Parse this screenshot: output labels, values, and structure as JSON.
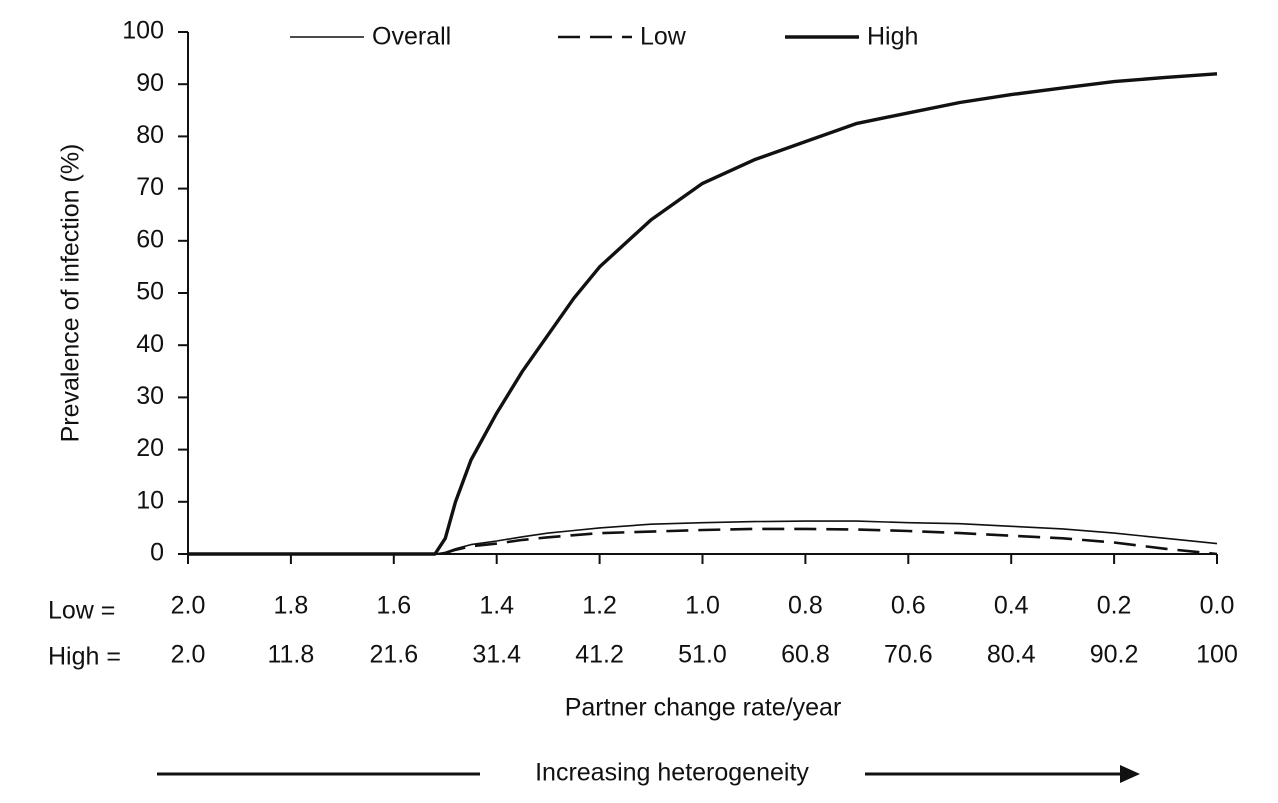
{
  "chart_data": {
    "type": "line",
    "y_label": "Prevalence of infection (%)",
    "x_label": "Partner change rate/year",
    "x_row_labels": [
      "Low =",
      "High ="
    ],
    "annotation": "Increasing heterogeneity",
    "x": [
      2.0,
      1.6,
      1.52,
      1.5,
      1.48,
      1.45,
      1.4,
      1.35,
      1.3,
      1.25,
      1.2,
      1.1,
      1.0,
      0.9,
      0.8,
      0.7,
      0.6,
      0.5,
      0.4,
      0.3,
      0.2,
      0.1,
      0.0
    ],
    "series": [
      {
        "name": "Overall",
        "color": "#111111",
        "width": 1.6,
        "dashed": false,
        "values": [
          0,
          0,
          0,
          0.3,
          1,
          1.8,
          2.5,
          3.3,
          4,
          4.5,
          5,
          5.7,
          6,
          6.2,
          6.3,
          6.3,
          6,
          5.8,
          5.3,
          4.8,
          4,
          3,
          2
        ]
      },
      {
        "name": "Low",
        "color": "#111111",
        "width": 2.6,
        "dashed": true,
        "values": [
          0,
          0,
          0,
          0.2,
          0.8,
          1.5,
          2,
          2.7,
          3.2,
          3.6,
          4,
          4.3,
          4.6,
          4.8,
          4.8,
          4.7,
          4.4,
          4,
          3.5,
          3,
          2.2,
          1,
          0
        ]
      },
      {
        "name": "High",
        "color": "#111111",
        "width": 3.4,
        "dashed": false,
        "values": [
          0,
          0,
          0,
          3,
          10,
          18,
          27,
          35,
          42,
          49,
          55,
          64,
          71,
          75.5,
          79,
          82.5,
          84.5,
          86.5,
          88,
          89.3,
          90.5,
          91.3,
          92
        ]
      }
    ],
    "xlim": [
      2.0,
      0.0
    ],
    "xticks": [
      {
        "value": 2,
        "label": "2.0"
      },
      1.8,
      1.6,
      1.4,
      1.2,
      {
        "value": 1,
        "label": "1.0"
      },
      0.8,
      0.6,
      0.4,
      0.2,
      {
        "value": 0,
        "label": "0.0"
      }
    ],
    "x2lim": [
      2.0,
      100
    ],
    "x2ticks": [
      {
        "value": 2,
        "label": "2.0"
      },
      11.8,
      21.6,
      31.4,
      41.2,
      {
        "value": 51,
        "label": "51.0"
      },
      60.8,
      70.6,
      80.4,
      90.2,
      100
    ],
    "ylim": [
      0,
      100
    ],
    "yticks": [
      0,
      10,
      20,
      30,
      40,
      50,
      60,
      70,
      80,
      90,
      100
    ],
    "grid": false
  }
}
